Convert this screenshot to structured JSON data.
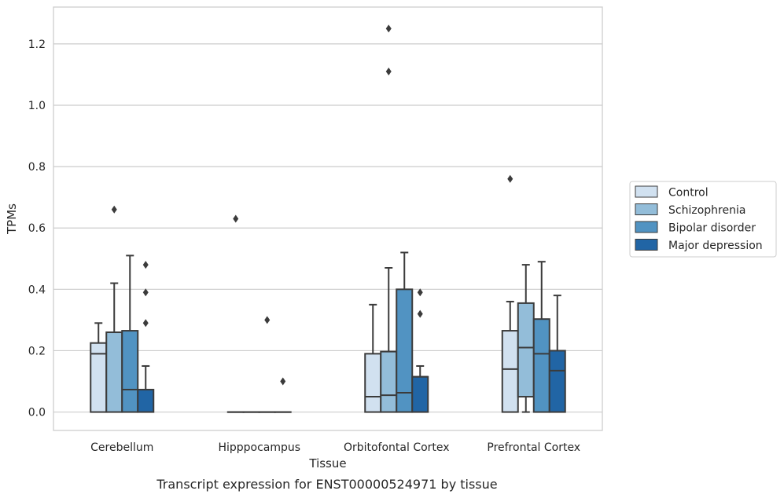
{
  "caption": "Transcript expression for ENST00000524971 by tissue",
  "chart_data": {
    "type": "boxplot",
    "xlabel": "Tissue",
    "ylabel": "TPMs",
    "ylim": [
      -0.06,
      1.32
    ],
    "yticks": [
      "0.0",
      "0.2",
      "0.4",
      "0.6",
      "0.8",
      "1.0",
      "1.2"
    ],
    "categories": [
      "Cerebellum",
      "Hipppocampus",
      "Orbitofontal Cortex",
      "Prefrontal Cortex"
    ],
    "grid": "horizontal",
    "legend_position": "right",
    "series": [
      {
        "name": "Control",
        "color": "#d1e1f0",
        "boxes": [
          {
            "min": 0,
            "q1": 0,
            "median": 0.19,
            "q3": 0.225,
            "max": 0.29,
            "outliers": []
          },
          {
            "min": 0,
            "q1": 0,
            "median": 0,
            "q3": 0,
            "max": 0,
            "outliers": [
              0.63
            ]
          },
          {
            "min": 0,
            "q1": 0,
            "median": 0.05,
            "q3": 0.19,
            "max": 0.35,
            "outliers": []
          },
          {
            "min": 0,
            "q1": 0,
            "median": 0.14,
            "q3": 0.265,
            "max": 0.36,
            "outliers": [
              0.76
            ]
          }
        ]
      },
      {
        "name": "Schizophrenia",
        "color": "#93bdd9",
        "boxes": [
          {
            "min": 0,
            "q1": 0,
            "median": 0.26,
            "q3": 0.26,
            "max": 0.42,
            "outliers": [
              0.66
            ]
          },
          {
            "min": 0,
            "q1": 0,
            "median": 0,
            "q3": 0,
            "max": 0,
            "outliers": []
          },
          {
            "min": 0,
            "q1": 0,
            "median": 0.055,
            "q3": 0.197,
            "max": 0.47,
            "outliers": [
              1.25,
              1.11
            ]
          },
          {
            "min": 0,
            "q1": 0.05,
            "median": 0.21,
            "q3": 0.355,
            "max": 0.48,
            "outliers": []
          }
        ]
      },
      {
        "name": "Bipolar disorder",
        "color": "#5193c2",
        "boxes": [
          {
            "min": 0,
            "q1": 0,
            "median": 0.073,
            "q3": 0.265,
            "max": 0.51,
            "outliers": []
          },
          {
            "min": 0,
            "q1": 0,
            "median": 0,
            "q3": 0,
            "max": 0,
            "outliers": [
              0.3
            ]
          },
          {
            "min": 0,
            "q1": 0,
            "median": 0.063,
            "q3": 0.4,
            "max": 0.52,
            "outliers": []
          },
          {
            "min": 0,
            "q1": 0,
            "median": 0.19,
            "q3": 0.303,
            "max": 0.49,
            "outliers": []
          }
        ]
      },
      {
        "name": "Major depression",
        "color": "#2165a5",
        "boxes": [
          {
            "min": 0,
            "q1": 0,
            "median": 0.073,
            "q3": 0.073,
            "max": 0.15,
            "outliers": [
              0.48,
              0.39,
              0.29
            ]
          },
          {
            "min": 0,
            "q1": 0,
            "median": 0,
            "q3": 0,
            "max": 0,
            "outliers": [
              0.1
            ]
          },
          {
            "min": 0,
            "q1": 0,
            "median": 0.115,
            "q3": 0.115,
            "max": 0.15,
            "outliers": [
              0.39,
              0.32
            ]
          },
          {
            "min": 0,
            "q1": 0,
            "median": 0.135,
            "q3": 0.2,
            "max": 0.38,
            "outliers": []
          }
        ]
      }
    ]
  }
}
